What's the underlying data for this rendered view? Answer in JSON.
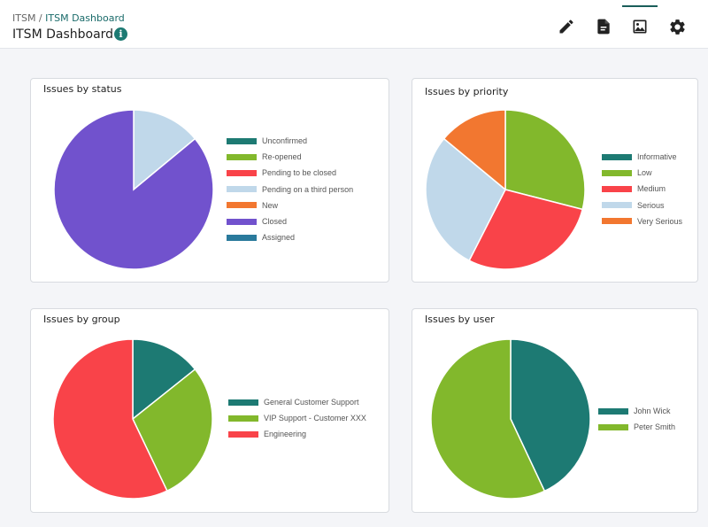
{
  "header": {
    "breadcrumb_root": "ITSM",
    "breadcrumb_sep": " / ",
    "breadcrumb_current": "ITSM Dashboard",
    "title": "ITSM Dashboard",
    "info_icon": "i"
  },
  "toolbar": {
    "tools": [
      {
        "name": "edit",
        "icon": "pencil-icon"
      },
      {
        "name": "report",
        "icon": "document-icon"
      },
      {
        "name": "image",
        "icon": "image-icon",
        "active": true
      },
      {
        "name": "settings",
        "icon": "gear-icon"
      }
    ]
  },
  "colors": {
    "Unconfirmed": "#1d7a73",
    "Re-opened": "#82b82c",
    "Pending to be closed": "#f94349",
    "Pending on a third person": "#c0d8ea",
    "New": "#f27730",
    "Closed": "#7152cd",
    "Assigned": "#2a7a9c",
    "Informative": "#1d7a73",
    "Low": "#82b82c",
    "Medium": "#f94349",
    "Serious": "#c0d8ea",
    "Very Serious": "#f27730",
    "General Customer Support": "#1d7a73",
    "VIP Support - Customer XXX": "#82b82c",
    "Engineering": "#f94349",
    "John Wick": "#1d7a73",
    "Peter Smith": "#82b82c"
  },
  "chart_data": [
    {
      "type": "pie",
      "title": "Issues by status",
      "legend": [
        "Unconfirmed",
        "Re-opened",
        "Pending to be closed",
        "Pending on a third person",
        "New",
        "Closed",
        "Assigned"
      ],
      "slices": [
        {
          "label": "Pending on a third person",
          "value": 14
        },
        {
          "label": "Closed",
          "value": 86
        }
      ]
    },
    {
      "type": "pie",
      "title": "Issues by priority",
      "legend": [
        "Informative",
        "Low",
        "Medium",
        "Serious",
        "Very Serious"
      ],
      "slices": [
        {
          "label": "Low",
          "value": 29
        },
        {
          "label": "Medium",
          "value": 28.5
        },
        {
          "label": "Serious",
          "value": 28.5
        },
        {
          "label": "Very Serious",
          "value": 14
        }
      ]
    },
    {
      "type": "pie",
      "title": "Issues by group",
      "legend": [
        "General Customer Support",
        "VIP Support - Customer XXX",
        "Engineering"
      ],
      "slices": [
        {
          "label": "General Customer Support",
          "value": 14.3
        },
        {
          "label": "VIP Support - Customer XXX",
          "value": 28.6
        },
        {
          "label": "Engineering",
          "value": 57.1
        }
      ]
    },
    {
      "type": "pie",
      "title": "Issues by user",
      "legend": [
        "John Wick",
        "Peter Smith"
      ],
      "slices": [
        {
          "label": "John Wick",
          "value": 43
        },
        {
          "label": "Peter Smith",
          "value": 57
        }
      ]
    }
  ]
}
